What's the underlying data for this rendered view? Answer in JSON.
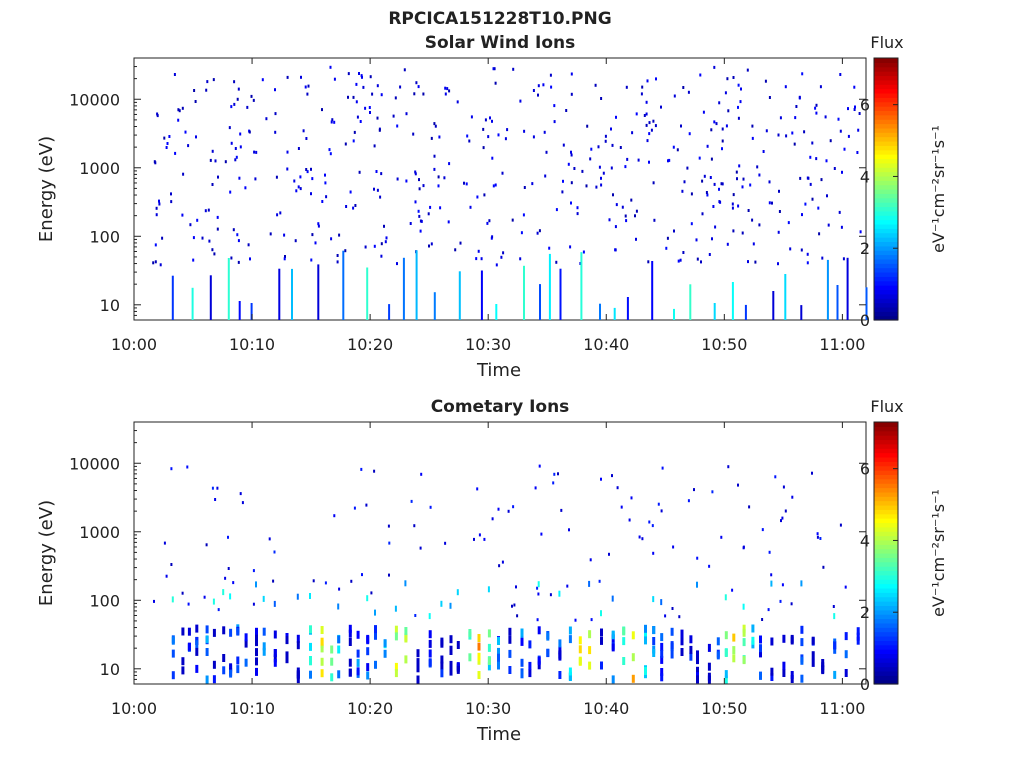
{
  "figure": {
    "title": "RPCICA151228T10.PNG"
  },
  "colorbar": {
    "label": "Flux",
    "unit_label": "eV⁻¹cm⁻²sr⁻¹s⁻¹",
    "ticks": [
      "0",
      "2",
      "4",
      "6"
    ],
    "range": [
      0,
      7.3
    ],
    "colormap": "jet"
  },
  "chart_data": [
    {
      "type": "heatmap",
      "title": "Solar Wind Ions",
      "xlabel": "Time",
      "ylabel": "Energy (eV)",
      "x_ticks": [
        "10:00",
        "10:10",
        "10:20",
        "10:30",
        "10:40",
        "10:50",
        "11:00"
      ],
      "y_ticks": [
        "10",
        "100",
        "1000",
        "10000"
      ],
      "xlim_minutes": [
        0,
        62
      ],
      "ylim_eV": [
        6,
        40000
      ],
      "yscale": "log",
      "description_of_data": "Sparse scattered single pixels at flux ~0.5-1 spread over 30-30000 eV for the whole hour; short vertical streaks of flux 1-3 at 6-60 eV recurring every ~1-2 minutes."
    },
    {
      "type": "heatmap",
      "title": "Cometary Ions",
      "xlabel": "Time",
      "ylabel": "Energy (eV)",
      "x_ticks": [
        "10:00",
        "10:10",
        "10:20",
        "10:30",
        "10:40",
        "10:50",
        "11:00"
      ],
      "y_ticks": [
        "10",
        "100",
        "1000",
        "10000"
      ],
      "xlim_minutes": [
        0,
        62
      ],
      "ylim_eV": [
        6,
        40000
      ],
      "yscale": "log",
      "description_of_data": "Dense recurring vertical bands at 10-40 eV with flux 2-6 roughly every 3 minutes, peaking near 10:16, 10:22, 10:29, 10:38, 10:42 and 10:51; sparse points at 60-10000 eV."
    }
  ]
}
